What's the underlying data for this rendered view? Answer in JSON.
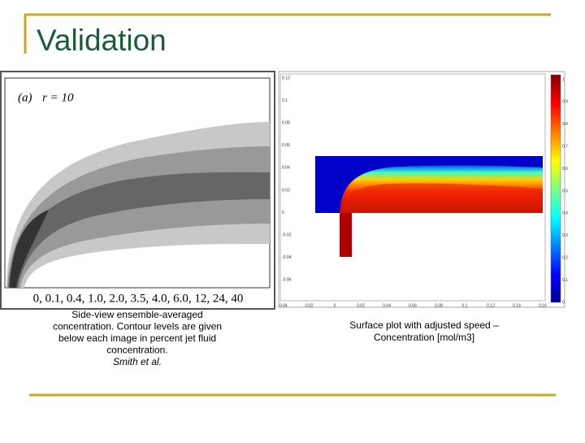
{
  "title": "Validation",
  "left_figure": {
    "panel_label": "(a)",
    "parameter": "r = 10",
    "contour_levels": "0, 0.1, 0.4, 1.0, 2.0, 3.5, 4.0, 6.0, 12, 24, 40",
    "caption": [
      "Side-view ensemble-averaged",
      "concentration. Contour levels are given",
      "below each image in percent jet fluid",
      "concentration."
    ],
    "credit": "Smith et al."
  },
  "right_figure": {
    "y_ticks": [
      "0.12",
      "0.1",
      "0.08",
      "0.06",
      "0.04",
      "0.02",
      "0",
      "-0.02",
      "-0.04",
      "-0.06"
    ],
    "x_ticks": [
      "-0.04",
      "-0.02",
      "0",
      "0.02",
      "0.04",
      "0.06",
      "0.08",
      "0.1",
      "0.12",
      "0.14",
      "0.16"
    ],
    "colorbar_ticks": [
      "1",
      "0.9",
      "0.8",
      "0.7",
      "0.6",
      "0.5",
      "0.4",
      "0.3",
      "0.2",
      "0.1",
      "0"
    ],
    "caption": [
      "Surface plot with adjusted speed –",
      "Concentration [mol/m3]"
    ]
  }
}
